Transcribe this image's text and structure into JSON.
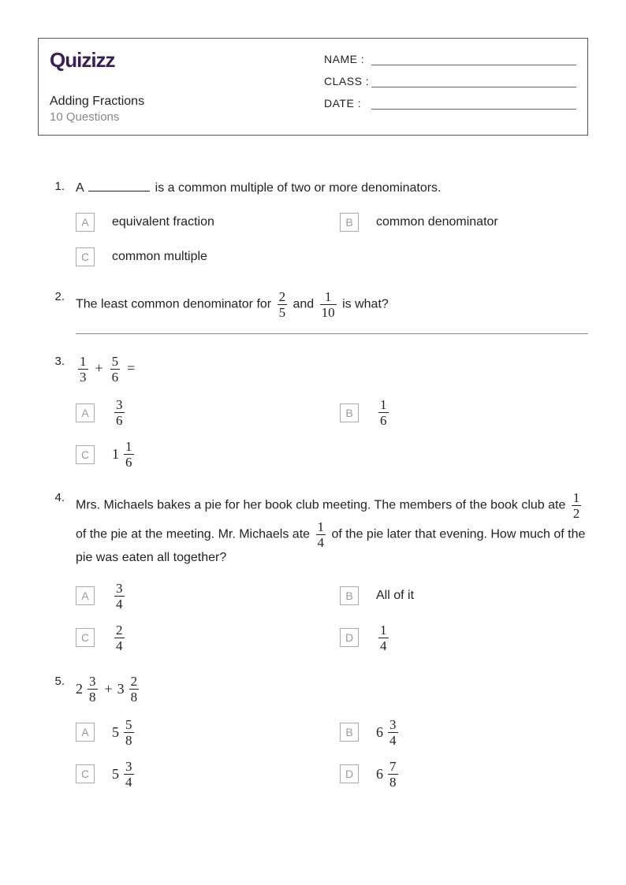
{
  "header": {
    "logo": "Quizizz",
    "title": "Adding Fractions",
    "subtitle": "10 Questions",
    "name_label": "NAME :",
    "class_label": "CLASS :",
    "date_label": "DATE  :"
  },
  "colors": {
    "logo": "#3a1c58",
    "text": "#222222",
    "muted": "#888888",
    "border": "#555555",
    "opt_border": "#aaaaaa",
    "opt_letter": "#999999"
  },
  "questions": [
    {
      "num": "1.",
      "pre": "A ",
      "post": " is a common multiple of two or more denominators.",
      "blank": true,
      "options": [
        {
          "l": "A",
          "text": "equivalent fraction"
        },
        {
          "l": "B",
          "text": "common denominator"
        },
        {
          "l": "C",
          "text": "common multiple"
        }
      ]
    },
    {
      "num": "2.",
      "pre": "The least common denominator for ",
      "f1": {
        "n": "2",
        "d": "5"
      },
      "mid": " and ",
      "f2": {
        "n": "1",
        "d": "10"
      },
      "post": " is what?",
      "answer_line": true
    },
    {
      "num": "3.",
      "expr": {
        "f1": {
          "n": "1",
          "d": "3"
        },
        "op": "+",
        "f2": {
          "n": "5",
          "d": "6"
        },
        "eq": "="
      },
      "options": [
        {
          "l": "A",
          "frac": {
            "n": "3",
            "d": "6"
          }
        },
        {
          "l": "B",
          "frac": {
            "n": "1",
            "d": "6"
          }
        },
        {
          "l": "C",
          "mixed": {
            "w": "1",
            "n": "1",
            "d": "6"
          }
        }
      ]
    },
    {
      "num": "4.",
      "pre": "Mrs. Michaels bakes a pie for her book club meeting. The members of the book club ate ",
      "f1": {
        "n": "1",
        "d": "2"
      },
      "mid": " of the pie at the meeting. Mr. Michaels ate ",
      "f2": {
        "n": "1",
        "d": "4"
      },
      "post": " of the pie later that evening. How much of the pie was eaten all together?",
      "options": [
        {
          "l": "A",
          "frac": {
            "n": "3",
            "d": "4"
          }
        },
        {
          "l": "B",
          "text": "All of it"
        },
        {
          "l": "C",
          "frac": {
            "n": "2",
            "d": "4"
          }
        },
        {
          "l": "D",
          "frac": {
            "n": "1",
            "d": "4"
          }
        }
      ]
    },
    {
      "num": "5.",
      "expr_mixed": {
        "m1": {
          "w": "2",
          "n": "3",
          "d": "8"
        },
        "op": "+",
        "m2": {
          "w": "3",
          "n": "2",
          "d": "8"
        }
      },
      "options": [
        {
          "l": "A",
          "mixed": {
            "w": "5",
            "n": "5",
            "d": "8"
          }
        },
        {
          "l": "B",
          "mixed": {
            "w": "6",
            "n": "3",
            "d": "4"
          }
        },
        {
          "l": "C",
          "mixed": {
            "w": "5",
            "n": "3",
            "d": "4"
          }
        },
        {
          "l": "D",
          "mixed": {
            "w": "6",
            "n": "7",
            "d": "8"
          }
        }
      ]
    }
  ]
}
